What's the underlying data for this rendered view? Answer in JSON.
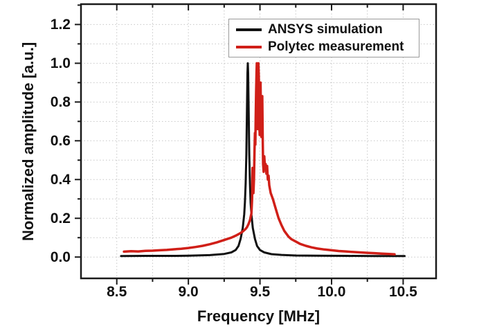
{
  "figure": {
    "x_title": "Frequency [MHz]",
    "y_title": "Normalized amplitude [a.u.]"
  },
  "colors": {
    "frame": "#1a1a1a",
    "grid": "#c6c6c6",
    "tick": "#1a1a1a",
    "text": "#111111",
    "legend_border": "#9a9a9a",
    "series_ansys": "#111111",
    "series_polytec": "#d01f18",
    "background": "#ffffff"
  },
  "chart_data": {
    "type": "line",
    "title": "",
    "xlabel": "Frequency [MHz]",
    "ylabel": "Normalized amplitude [a.u.]",
    "xlim": [
      8.25,
      10.73
    ],
    "ylim": [
      -0.11,
      1.305
    ],
    "grid": "dotted light-gray lines at every 0.25 MHz (x) and every 0.1 (y)",
    "legend_position": "inside top, center-right, boxed",
    "x_major_ticks": [
      8.5,
      9.0,
      9.5,
      10.0,
      10.5
    ],
    "x_tick_labels": [
      "8.5",
      "9.0",
      "9.5",
      "10.0",
      "10.5"
    ],
    "x_minor_ticks": [
      8.75,
      9.25,
      9.75,
      10.25
    ],
    "y_major_ticks": [
      0.0,
      0.2,
      0.4,
      0.6,
      0.8,
      1.0,
      1.2
    ],
    "y_tick_labels": [
      "0.0",
      "0.2",
      "0.4",
      "0.6",
      "0.8",
      "1.0",
      "1.2"
    ],
    "y_minor_ticks": [
      0.1,
      0.3,
      0.5,
      0.7,
      0.9,
      1.1,
      1.3
    ],
    "grid_x": [
      8.5,
      8.75,
      9.0,
      9.25,
      9.5,
      9.75,
      10.0,
      10.25,
      10.5
    ],
    "grid_y": [
      0.0,
      0.1,
      0.2,
      0.3,
      0.4,
      0.5,
      0.6,
      0.7,
      0.8,
      0.9,
      1.0,
      1.1,
      1.2
    ],
    "series": [
      {
        "name": "ANSYS simulation",
        "color": "#111111",
        "line_width": 3,
        "peak_frequency_mhz": 9.42,
        "peak_amplitude": 1.0,
        "points": [
          [
            8.53,
            0.005
          ],
          [
            8.7,
            0.006
          ],
          [
            8.9,
            0.006
          ],
          [
            9.0,
            0.007
          ],
          [
            9.15,
            0.01
          ],
          [
            9.25,
            0.016
          ],
          [
            9.3,
            0.024
          ],
          [
            9.33,
            0.036
          ],
          [
            9.35,
            0.057
          ],
          [
            9.365,
            0.094
          ],
          [
            9.38,
            0.15
          ],
          [
            9.39,
            0.22
          ],
          [
            9.395,
            0.28
          ],
          [
            9.4,
            0.38
          ],
          [
            9.405,
            0.53
          ],
          [
            9.41,
            0.82
          ],
          [
            9.4125,
            0.95
          ],
          [
            9.415,
            1.0
          ],
          [
            9.4175,
            0.95
          ],
          [
            9.42,
            0.82
          ],
          [
            9.425,
            0.53
          ],
          [
            9.43,
            0.38
          ],
          [
            9.435,
            0.28
          ],
          [
            9.44,
            0.22
          ],
          [
            9.45,
            0.15
          ],
          [
            9.465,
            0.094
          ],
          [
            9.48,
            0.057
          ],
          [
            9.5,
            0.036
          ],
          [
            9.53,
            0.024
          ],
          [
            9.58,
            0.015
          ],
          [
            9.65,
            0.011
          ],
          [
            9.75,
            0.008
          ],
          [
            9.9,
            0.007
          ],
          [
            10.1,
            0.006
          ],
          [
            10.3,
            0.005
          ],
          [
            10.51,
            0.005
          ]
        ]
      },
      {
        "name": "Polytec measurement",
        "color": "#d01f18",
        "line_width": 3.5,
        "peak_frequency_mhz": 9.48,
        "peak_amplitude": 1.0,
        "points": [
          [
            8.55,
            0.028
          ],
          [
            8.6,
            0.03
          ],
          [
            8.65,
            0.029
          ],
          [
            8.7,
            0.032
          ],
          [
            8.75,
            0.033
          ],
          [
            8.8,
            0.035
          ],
          [
            8.85,
            0.037
          ],
          [
            8.9,
            0.04
          ],
          [
            8.95,
            0.043
          ],
          [
            9.0,
            0.047
          ],
          [
            9.05,
            0.052
          ],
          [
            9.1,
            0.058
          ],
          [
            9.15,
            0.066
          ],
          [
            9.2,
            0.076
          ],
          [
            9.25,
            0.088
          ],
          [
            9.3,
            0.1
          ],
          [
            9.33,
            0.11
          ],
          [
            9.36,
            0.122
          ],
          [
            9.38,
            0.132
          ],
          [
            9.4,
            0.145
          ],
          [
            9.41,
            0.155
          ],
          [
            9.42,
            0.17
          ],
          [
            9.43,
            0.19
          ],
          [
            9.44,
            0.225
          ],
          [
            9.445,
            0.3
          ],
          [
            9.448,
            0.46
          ],
          [
            9.451,
            0.36
          ],
          [
            9.454,
            0.33
          ],
          [
            9.458,
            0.4
          ],
          [
            9.462,
            0.55
          ],
          [
            9.465,
            0.64
          ],
          [
            9.468,
            0.58
          ],
          [
            9.47,
            0.72
          ],
          [
            9.473,
            0.85
          ],
          [
            9.476,
            0.95
          ],
          [
            9.478,
            1.0
          ],
          [
            9.48,
            0.88
          ],
          [
            9.483,
            0.66
          ],
          [
            9.486,
            0.84
          ],
          [
            9.489,
            1.0
          ],
          [
            9.492,
            0.93
          ],
          [
            9.495,
            0.7
          ],
          [
            9.498,
            0.63
          ],
          [
            9.501,
            0.88
          ],
          [
            9.504,
            0.9
          ],
          [
            9.507,
            0.72
          ],
          [
            9.51,
            0.62
          ],
          [
            9.513,
            0.8
          ],
          [
            9.516,
            0.83
          ],
          [
            9.519,
            0.62
          ],
          [
            9.522,
            0.48
          ],
          [
            9.526,
            0.44
          ],
          [
            9.53,
            0.52
          ],
          [
            9.535,
            0.46
          ],
          [
            9.54,
            0.48
          ],
          [
            9.545,
            0.43
          ],
          [
            9.55,
            0.47
          ],
          [
            9.555,
            0.4
          ],
          [
            9.56,
            0.42
          ],
          [
            9.565,
            0.37
          ],
          [
            9.575,
            0.33
          ],
          [
            9.59,
            0.3
          ],
          [
            9.61,
            0.25
          ],
          [
            9.63,
            0.2
          ],
          [
            9.65,
            0.165
          ],
          [
            9.67,
            0.135
          ],
          [
            9.7,
            0.105
          ],
          [
            9.72,
            0.092
          ],
          [
            9.75,
            0.08
          ],
          [
            9.78,
            0.068
          ],
          [
            9.82,
            0.058
          ],
          [
            9.86,
            0.05
          ],
          [
            9.9,
            0.044
          ],
          [
            9.95,
            0.039
          ],
          [
            10.0,
            0.035
          ],
          [
            10.05,
            0.031
          ],
          [
            10.1,
            0.029
          ],
          [
            10.15,
            0.026
          ],
          [
            10.2,
            0.024
          ],
          [
            10.25,
            0.022
          ],
          [
            10.3,
            0.02
          ],
          [
            10.35,
            0.018
          ],
          [
            10.4,
            0.016
          ],
          [
            10.44,
            0.014
          ]
        ]
      }
    ]
  }
}
